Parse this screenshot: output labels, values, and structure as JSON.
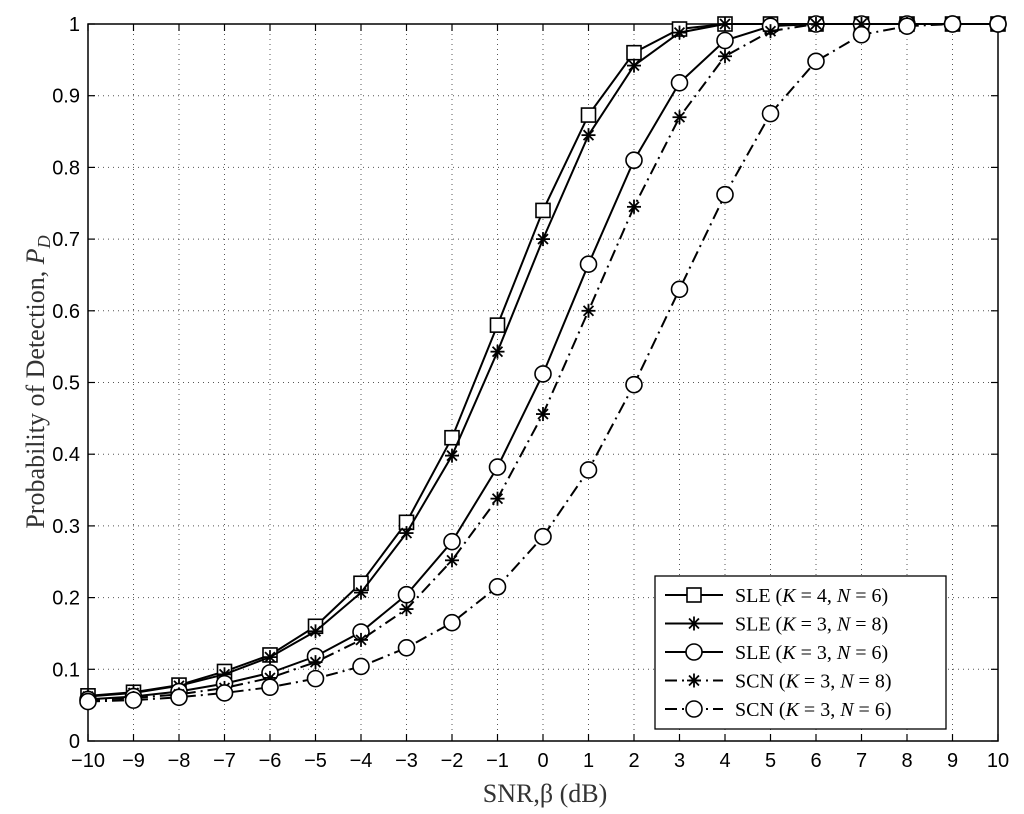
{
  "chart_data": {
    "type": "line",
    "title": "",
    "xlabel": "SNR,β (dB)",
    "ylabel": "Probability of Detection, P_D",
    "ylabel_plain": "Probability of Detection, ",
    "ylabel_symbol": "P",
    "ylabel_subscript": "D",
    "xlim": [
      -10,
      10
    ],
    "ylim": [
      0,
      1
    ],
    "xticks": [
      -10,
      -9,
      -8,
      -7,
      -6,
      -5,
      -4,
      -3,
      -2,
      -1,
      0,
      1,
      2,
      3,
      4,
      5,
      6,
      7,
      8,
      9,
      10
    ],
    "xtick_labels": [
      "−10",
      "−9",
      "−8",
      "−7",
      "−6",
      "−5",
      "−4",
      "−3",
      "−2",
      "−1",
      "0",
      "1",
      "2",
      "3",
      "4",
      "5",
      "6",
      "7",
      "8",
      "9",
      "10"
    ],
    "yticks": [
      0,
      0.1,
      0.2,
      0.3,
      0.4,
      0.5,
      0.6,
      0.7,
      0.8,
      0.9,
      1
    ],
    "ytick_labels": [
      "0",
      "0.1",
      "0.2",
      "0.3",
      "0.4",
      "0.5",
      "0.6",
      "0.7",
      "0.8",
      "0.9",
      "1"
    ],
    "grid": true,
    "legend_position": "bottom-right",
    "x": [
      -10,
      -9,
      -8,
      -7,
      -6,
      -5,
      -4,
      -3,
      -2,
      -1,
      0,
      1,
      2,
      3,
      4,
      5,
      6,
      7,
      8,
      9,
      10
    ],
    "series": [
      {
        "name": "SLE (K = 4, N = 6)",
        "marker": "square",
        "line_style": "solid",
        "values": [
          0.063,
          0.068,
          0.078,
          0.097,
          0.12,
          0.16,
          0.22,
          0.305,
          0.423,
          0.58,
          0.74,
          0.873,
          0.96,
          0.993,
          1.0,
          1.0,
          1.0,
          1.0,
          1.0,
          1.0,
          1.0
        ]
      },
      {
        "name": "SLE (K = 3, N = 8)",
        "marker": "asterisk",
        "line_style": "solid",
        "values": [
          0.062,
          0.067,
          0.077,
          0.093,
          0.117,
          0.153,
          0.207,
          0.29,
          0.398,
          0.543,
          0.7,
          0.845,
          0.942,
          0.988,
          1.0,
          1.0,
          1.0,
          1.0,
          1.0,
          1.0,
          1.0
        ]
      },
      {
        "name": "SLE (K = 3, N = 6)",
        "marker": "circle",
        "line_style": "solid",
        "values": [
          0.058,
          0.062,
          0.069,
          0.08,
          0.095,
          0.118,
          0.152,
          0.204,
          0.278,
          0.382,
          0.512,
          0.665,
          0.81,
          0.918,
          0.977,
          0.997,
          1.0,
          1.0,
          1.0,
          1.0,
          1.0
        ]
      },
      {
        "name": "SCN (K = 3, N = 8)",
        "marker": "asterisk",
        "line_style": "dashdot",
        "values": [
          0.057,
          0.06,
          0.065,
          0.074,
          0.088,
          0.11,
          0.141,
          0.184,
          0.252,
          0.338,
          0.456,
          0.6,
          0.745,
          0.87,
          0.955,
          0.99,
          1.0,
          1.0,
          1.0,
          1.0,
          1.0
        ]
      },
      {
        "name": "SCN (K = 3, N = 6)",
        "marker": "circle",
        "line_style": "dashdot",
        "values": [
          0.055,
          0.057,
          0.061,
          0.067,
          0.075,
          0.087,
          0.104,
          0.13,
          0.165,
          0.215,
          0.285,
          0.378,
          0.497,
          0.63,
          0.762,
          0.875,
          0.948,
          0.985,
          0.997,
          1.0,
          1.0
        ]
      }
    ],
    "legend": [
      {
        "prefix": "SLE (",
        "k_value": "4",
        "n_value": "6"
      },
      {
        "prefix": "SLE (",
        "k_value": "3",
        "n_value": "8"
      },
      {
        "prefix": "SLE (",
        "k_value": "3",
        "n_value": "6"
      },
      {
        "prefix": "SCN (",
        "k_value": "3",
        "n_value": "8"
      },
      {
        "prefix": "SCN (",
        "k_value": "3",
        "n_value": "6"
      }
    ],
    "legend_k_symbol": "K",
    "legend_n_symbol": "N",
    "legend_equals": " = ",
    "legend_comma": ", ",
    "legend_close": ")",
    "colors": {
      "line": "#000000",
      "background": "#ffffff",
      "grid": "#555555"
    }
  }
}
